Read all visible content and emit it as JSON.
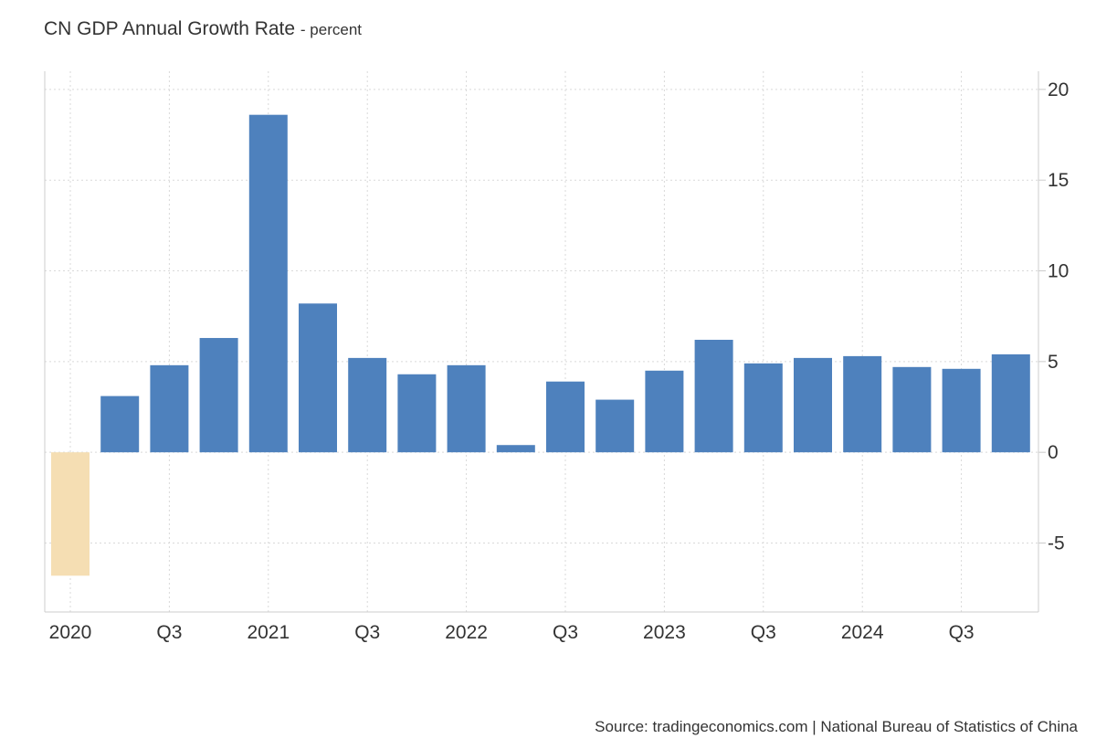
{
  "chart_data": {
    "type": "bar",
    "title": "CN GDP Annual Growth Rate",
    "unit": "- percent",
    "x": [
      "2020 Q1",
      "2020 Q2",
      "2020 Q3",
      "2020 Q4",
      "2021 Q1",
      "2021 Q2",
      "2021 Q3",
      "2021 Q4",
      "2022 Q1",
      "2022 Q2",
      "2022 Q3",
      "2022 Q4",
      "2023 Q1",
      "2023 Q2",
      "2023 Q3",
      "2023 Q4",
      "2024 Q1",
      "2024 Q2",
      "2024 Q3",
      "2024 Q4"
    ],
    "values": [
      -6.8,
      3.1,
      4.8,
      6.3,
      18.6,
      8.2,
      5.2,
      4.3,
      4.8,
      0.4,
      3.9,
      2.9,
      4.5,
      6.2,
      4.9,
      5.2,
      5.3,
      4.7,
      4.6,
      5.4
    ],
    "x_tick_labels": [
      "2020",
      "Q3",
      "2021",
      "Q3",
      "2022",
      "Q3",
      "2023",
      "Q3",
      "2024",
      "Q3"
    ],
    "y_tick_labels": [
      "20",
      "15",
      "10",
      "5",
      "0",
      "-5"
    ],
    "ylim": [
      -8.8,
      21
    ],
    "y_ticks": [
      20,
      15,
      10,
      5,
      0,
      -5
    ],
    "y_axis_side": "right",
    "grid": true,
    "legend": "none",
    "colors": {
      "positive": "#4e81bd",
      "negative": "#f5deb3",
      "grid": "#d9d9d9",
      "axis": "#cccccc"
    }
  },
  "source": "Source: tradingeconomics.com | National Bureau of Statistics of China"
}
